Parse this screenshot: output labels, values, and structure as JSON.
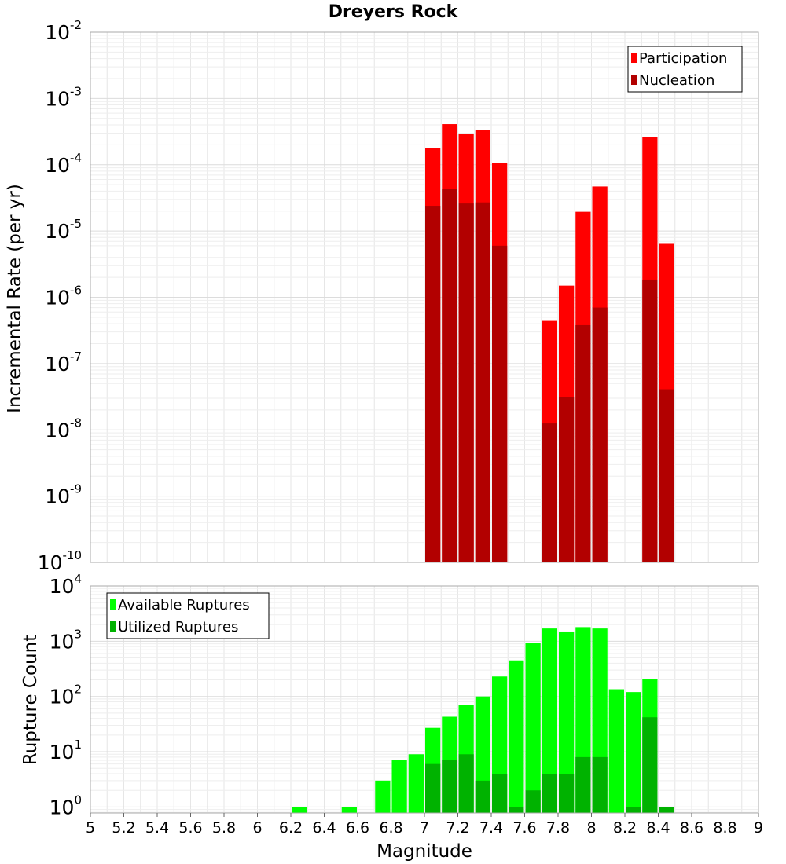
{
  "chart_data": [
    {
      "type": "bar",
      "title": "Dreyers Rock",
      "xlabel": "",
      "ylabel": "Incremental Rate (per yr)",
      "yscale": "log",
      "ylim": [
        1e-10,
        0.01
      ],
      "xlim": [
        5,
        9
      ],
      "y_ticks": [
        {
          "base": "10",
          "exp": "-10",
          "value": 1e-10
        },
        {
          "base": "10",
          "exp": "-9",
          "value": 1e-09
        },
        {
          "base": "10",
          "exp": "-8",
          "value": 1e-08
        },
        {
          "base": "10",
          "exp": "-7",
          "value": 1e-07
        },
        {
          "base": "10",
          "exp": "-6",
          "value": 1e-06
        },
        {
          "base": "10",
          "exp": "-5",
          "value": 1e-05
        },
        {
          "base": "10",
          "exp": "-4",
          "value": 0.0001
        },
        {
          "base": "10",
          "exp": "-3",
          "value": 0.001
        },
        {
          "base": "10",
          "exp": "-2",
          "value": 0.01
        }
      ],
      "legend_position": "top-right",
      "series": [
        {
          "name": "Participation",
          "color": "#ff0000",
          "x": [
            7.05,
            7.15,
            7.25,
            7.35,
            7.45,
            7.75,
            7.85,
            7.95,
            8.05,
            8.35,
            8.45
          ],
          "values": [
            0.00018,
            0.00041,
            0.00029,
            0.00033,
            0.000105,
            4.4e-07,
            1.5e-06,
            1.95e-05,
            4.7e-05,
            0.00026,
            6.4e-06
          ]
        },
        {
          "name": "Nucleation",
          "color": "#b20000",
          "x": [
            7.05,
            7.15,
            7.25,
            7.35,
            7.45,
            7.75,
            7.85,
            7.95,
            8.05,
            8.35,
            8.45
          ],
          "values": [
            2.4e-05,
            4.3e-05,
            2.6e-05,
            2.7e-05,
            6e-06,
            1.25e-08,
            3.1e-08,
            3.8e-07,
            7e-07,
            1.85e-06,
            4.1e-08
          ]
        }
      ]
    },
    {
      "type": "bar",
      "title": "",
      "xlabel": "Magnitude",
      "ylabel": "Rupture Count",
      "yscale": "log",
      "ylim": [
        0.78,
        10000
      ],
      "xlim": [
        5,
        9
      ],
      "x_ticks": [
        "5",
        "5.2",
        "5.4",
        "5.6",
        "5.8",
        "6",
        "6.2",
        "6.4",
        "6.6",
        "6.8",
        "7",
        "7.2",
        "7.4",
        "7.6",
        "7.8",
        "8",
        "8.2",
        "8.4",
        "8.6",
        "8.8",
        "9"
      ],
      "y_ticks": [
        {
          "base": "10",
          "exp": "0",
          "value": 1
        },
        {
          "base": "10",
          "exp": "1",
          "value": 10
        },
        {
          "base": "10",
          "exp": "2",
          "value": 100
        },
        {
          "base": "10",
          "exp": "3",
          "value": 1000
        },
        {
          "base": "10",
          "exp": "4",
          "value": 10000
        }
      ],
      "legend_position": "top-left",
      "series": [
        {
          "name": "Available Ruptures",
          "color": "#00ff00",
          "x": [
            6.25,
            6.55,
            6.75,
            6.85,
            6.95,
            7.05,
            7.15,
            7.25,
            7.35,
            7.45,
            7.55,
            7.65,
            7.75,
            7.85,
            7.95,
            8.05,
            8.15,
            8.25,
            8.35,
            8.45
          ],
          "values": [
            1,
            1,
            3,
            7,
            9,
            27,
            43,
            70,
            100,
            230,
            450,
            920,
            1700,
            1500,
            1800,
            1700,
            135,
            120,
            210,
            1
          ]
        },
        {
          "name": "Utilized Ruptures",
          "color": "#00b200",
          "x": [
            7.05,
            7.15,
            7.25,
            7.35,
            7.45,
            7.55,
            7.65,
            7.75,
            7.85,
            7.95,
            8.05,
            8.25,
            8.35,
            8.45
          ],
          "values": [
            6,
            7,
            9,
            3,
            4,
            1,
            2,
            4,
            4,
            8,
            8,
            1,
            42,
            1
          ]
        }
      ]
    }
  ]
}
